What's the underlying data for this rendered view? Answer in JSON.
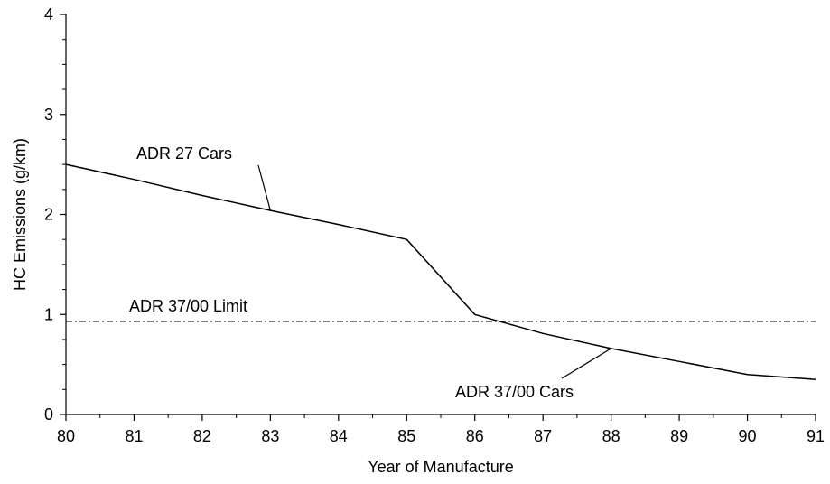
{
  "chart_data": {
    "type": "line",
    "title": "",
    "xlabel": "Year of Manufacture",
    "ylabel": "HC Emissions (g/km)",
    "xlim": [
      80,
      91
    ],
    "ylim": [
      0,
      4
    ],
    "x_ticks": [
      80,
      81,
      82,
      83,
      84,
      85,
      86,
      87,
      88,
      89,
      90,
      91
    ],
    "y_ticks": [
      0,
      1,
      2,
      3,
      4
    ],
    "grid": false,
    "series": [
      {
        "name": "",
        "line_style": "solid",
        "color": "#000000",
        "x": [
          80,
          81,
          82,
          83,
          84,
          85,
          86,
          87,
          88,
          89,
          90,
          91
        ],
        "y": [
          2.5,
          2.35,
          2.19,
          2.04,
          1.9,
          1.75,
          1.0,
          0.81,
          0.66,
          0.53,
          0.4,
          0.35
        ]
      }
    ],
    "reference_lines": [
      {
        "label": "ADR 37/00 Limit",
        "y": 0.93,
        "line_style": "dash-dot",
        "color": "#000000"
      }
    ],
    "annotations": [
      {
        "text": "ADR 27 Cars",
        "points_to": {
          "x": 83,
          "y": 2.04
        }
      },
      {
        "text": "ADR 37/00 Cars",
        "points_to": {
          "x": 88,
          "y": 0.66
        }
      }
    ]
  }
}
